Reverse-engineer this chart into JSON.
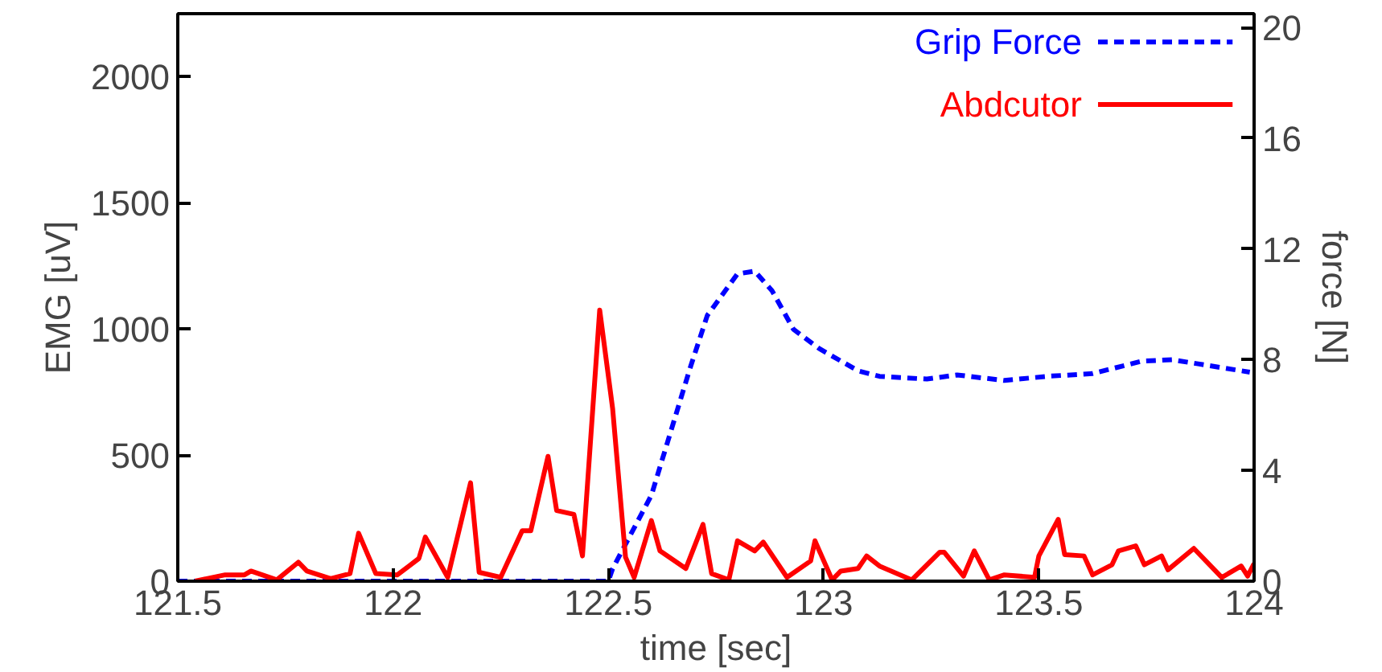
{
  "chart_data": {
    "type": "line",
    "xlabel": "time [sec]",
    "ylabel": "EMG [uV]",
    "y2label": "force [N]",
    "xlim": [
      121.5,
      124
    ],
    "xticks": [
      121.5,
      122,
      122.5,
      123,
      123.5,
      124
    ],
    "ylim": [
      0,
      2250
    ],
    "yticks": [
      0,
      500,
      1000,
      1500,
      2000
    ],
    "y2lim": [
      0,
      20.5
    ],
    "y2ticks": [
      0,
      4,
      8,
      12,
      16,
      20
    ],
    "grid": false,
    "legend": "top right",
    "marker": "none",
    "series": [
      {
        "name": "Grip Force",
        "color": "#0000ff",
        "axis": "y2",
        "line_style": "dashed",
        "x": [
          121.5,
          122.5,
          122.51,
          122.6,
          122.69,
          122.73,
          122.8,
          122.84,
          122.88,
          122.93,
          122.99,
          123.08,
          123.13,
          123.24,
          123.31,
          123.42,
          123.52,
          123.625,
          123.74,
          123.81,
          123.87,
          123.99
        ],
        "values": [
          0,
          0,
          0.45,
          3.1,
          7.7,
          9.6,
          11.1,
          11.2,
          10.5,
          9.1,
          8.4,
          7.6,
          7.4,
          7.3,
          7.45,
          7.25,
          7.4,
          7.5,
          7.95,
          8.0,
          7.85,
          7.55
        ]
      },
      {
        "name": "Abdcutor",
        "color": "#ff0000",
        "line_style": "solid",
        "x": [
          121.54,
          121.61,
          121.655,
          121.67,
          121.73,
          121.78,
          121.8,
          121.855,
          121.9,
          121.92,
          121.96,
          122.01,
          122.06,
          122.075,
          122.127,
          122.18,
          122.2,
          122.25,
          122.3,
          122.32,
          122.36,
          122.38,
          122.42,
          122.44,
          122.48,
          122.51,
          122.54,
          122.56,
          122.6,
          122.62,
          122.68,
          122.72,
          122.74,
          122.78,
          122.8,
          122.84,
          122.86,
          122.915,
          122.97,
          122.98,
          123.02,
          123.04,
          123.08,
          123.1,
          123.13,
          123.205,
          123.27,
          123.28,
          123.325,
          123.35,
          123.385,
          123.42,
          123.49,
          123.5,
          123.545,
          123.56,
          123.605,
          123.625,
          123.67,
          123.685,
          123.725,
          123.745,
          123.785,
          123.8,
          123.86,
          123.925,
          123.97,
          123.985,
          124.0
        ],
        "values": [
          0,
          25,
          25,
          40,
          5,
          75,
          40,
          10,
          30,
          190,
          30,
          25,
          90,
          175,
          15,
          390,
          35,
          15,
          200,
          200,
          495,
          280,
          265,
          100,
          1075,
          685,
          95,
          15,
          240,
          120,
          50,
          225,
          30,
          5,
          160,
          120,
          155,
          15,
          80,
          160,
          5,
          40,
          50,
          100,
          60,
          5,
          115,
          115,
          20,
          120,
          5,
          25,
          15,
          100,
          245,
          105,
          100,
          25,
          65,
          120,
          140,
          65,
          100,
          45,
          130,
          15,
          60,
          20,
          70
        ]
      }
    ]
  }
}
